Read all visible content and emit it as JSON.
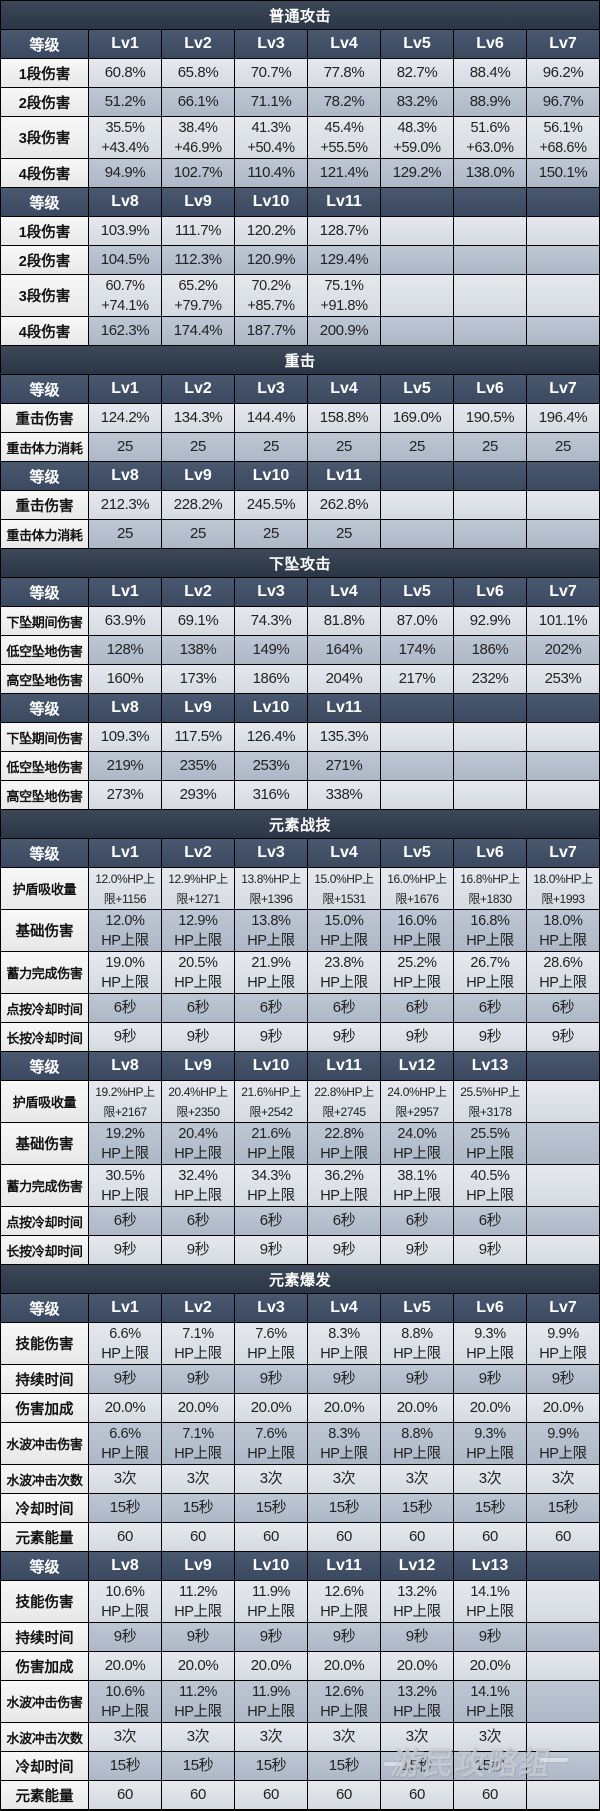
{
  "theme": {
    "title_bg": "#2e3a4b",
    "header_bg": "#3e4e66",
    "header_text": "#ffffff",
    "label_bg": "#efefef",
    "row_light": "#dce1e8",
    "row_dark": "#b4bfce",
    "cell_text": "#222222",
    "border": "#000000"
  },
  "watermark": "游民攻略组",
  "sections": [
    {
      "title": "普通攻击",
      "blocks": [
        {
          "header": [
            "等级",
            "Lv1",
            "Lv2",
            "Lv3",
            "Lv4",
            "Lv5",
            "Lv6",
            "Lv7"
          ],
          "rows": [
            {
              "label": "1段伤害",
              "values": [
                "60.8%",
                "65.8%",
                "70.7%",
                "77.8%",
                "82.7%",
                "88.4%",
                "96.2%"
              ]
            },
            {
              "label": "2段伤害",
              "values": [
                "51.2%",
                "66.1%",
                "71.1%",
                "78.2%",
                "83.2%",
                "88.9%",
                "96.7%"
              ]
            },
            {
              "label": "3段伤害",
              "values": [
                "35.5%\n+43.4%",
                "38.4%\n+46.9%",
                "41.3%\n+50.4%",
                "45.4%\n+55.5%",
                "48.3%\n+59.0%",
                "51.6%\n+63.0%",
                "56.1%\n+68.6%"
              ]
            },
            {
              "label": "4段伤害",
              "values": [
                "94.9%",
                "102.7%",
                "110.4%",
                "121.4%",
                "129.2%",
                "138.0%",
                "150.1%"
              ]
            }
          ]
        },
        {
          "header": [
            "等级",
            "Lv8",
            "Lv9",
            "Lv10",
            "Lv11"
          ],
          "rows": [
            {
              "label": "1段伤害",
              "values": [
                "103.9%",
                "111.7%",
                "120.2%",
                "128.7%"
              ]
            },
            {
              "label": "2段伤害",
              "values": [
                "104.5%",
                "112.3%",
                "120.9%",
                "129.4%"
              ]
            },
            {
              "label": "3段伤害",
              "values": [
                "60.7%\n+74.1%",
                "65.2%\n+79.7%",
                "70.2%\n+85.7%",
                "75.1%\n+91.8%"
              ]
            },
            {
              "label": "4段伤害",
              "values": [
                "162.3%",
                "174.4%",
                "187.7%",
                "200.9%"
              ]
            }
          ]
        }
      ]
    },
    {
      "title": "重击",
      "blocks": [
        {
          "header": [
            "等级",
            "Lv1",
            "Lv2",
            "Lv3",
            "Lv4",
            "Lv5",
            "Lv6",
            "Lv7"
          ],
          "rows": [
            {
              "label": "重击伤害",
              "values": [
                "124.2%",
                "134.3%",
                "144.4%",
                "158.8%",
                "169.0%",
                "190.5%",
                "196.4%"
              ]
            },
            {
              "label": "重击体力消耗",
              "values": [
                "25",
                "25",
                "25",
                "25",
                "25",
                "25",
                "25"
              ]
            }
          ]
        },
        {
          "header": [
            "等级",
            "Lv8",
            "Lv9",
            "Lv10",
            "Lv11"
          ],
          "rows": [
            {
              "label": "重击伤害",
              "values": [
                "212.3%",
                "228.2%",
                "245.5%",
                "262.8%"
              ]
            },
            {
              "label": "重击体力消耗",
              "values": [
                "25",
                "25",
                "25",
                "25"
              ]
            }
          ]
        }
      ]
    },
    {
      "title": "下坠攻击",
      "blocks": [
        {
          "header": [
            "等级",
            "Lv1",
            "Lv2",
            "Lv3",
            "Lv4",
            "Lv5",
            "Lv6",
            "Lv7"
          ],
          "rows": [
            {
              "label": "下坠期间伤害",
              "values": [
                "63.9%",
                "69.1%",
                "74.3%",
                "81.8%",
                "87.0%",
                "92.9%",
                "101.1%"
              ]
            },
            {
              "label": "低空坠地伤害",
              "values": [
                "128%",
                "138%",
                "149%",
                "164%",
                "174%",
                "186%",
                "202%"
              ]
            },
            {
              "label": "高空坠地伤害",
              "values": [
                "160%",
                "173%",
                "186%",
                "204%",
                "217%",
                "232%",
                "253%"
              ]
            }
          ]
        },
        {
          "header": [
            "等级",
            "Lv8",
            "Lv9",
            "Lv10",
            "Lv11"
          ],
          "rows": [
            {
              "label": "下坠期间伤害",
              "values": [
                "109.3%",
                "117.5%",
                "126.4%",
                "135.3%"
              ]
            },
            {
              "label": "低空坠地伤害",
              "values": [
                "219%",
                "235%",
                "253%",
                "271%"
              ]
            },
            {
              "label": "高空坠地伤害",
              "values": [
                "273%",
                "293%",
                "316%",
                "338%"
              ]
            }
          ]
        }
      ]
    },
    {
      "title": "元素战技",
      "blocks": [
        {
          "header": [
            "等级",
            "Lv1",
            "Lv2",
            "Lv3",
            "Lv4",
            "Lv5",
            "Lv6",
            "Lv7"
          ],
          "rows": [
            {
              "label": "护盾吸收量",
              "values": [
                "12.0%HP上\n限+1156",
                "12.9%HP上\n限+1271",
                "13.8%HP上\n限+1396",
                "15.0%HP上\n限+1531",
                "16.0%HP上\n限+1676",
                "16.8%HP上\n限+1830",
                "18.0%HP上\n限+1993"
              ]
            },
            {
              "label": "基础伤害",
              "values": [
                "12.0%\nHP上限",
                "12.9%\nHP上限",
                "13.8%\nHP上限",
                "15.0%\nHP上限",
                "16.0%\nHP上限",
                "16.8%\nHP上限",
                "18.0%\nHP上限"
              ]
            },
            {
              "label": "蓄力完成伤害",
              "values": [
                "19.0%\nHP上限",
                "20.5%\nHP上限",
                "21.9%\nHP上限",
                "23.8%\nHP上限",
                "25.2%\nHP上限",
                "26.7%\nHP上限",
                "28.6%\nHP上限"
              ]
            },
            {
              "label": "点按冷却时间",
              "values": [
                "6秒",
                "6秒",
                "6秒",
                "6秒",
                "6秒",
                "6秒",
                "6秒"
              ]
            },
            {
              "label": "长按冷却时间",
              "values": [
                "9秒",
                "9秒",
                "9秒",
                "9秒",
                "9秒",
                "9秒",
                "9秒"
              ]
            }
          ]
        },
        {
          "header": [
            "等级",
            "Lv8",
            "Lv9",
            "Lv10",
            "Lv11",
            "Lv12",
            "Lv13"
          ],
          "rows": [
            {
              "label": "护盾吸收量",
              "values": [
                "19.2%HP上\n限+2167",
                "20.4%HP上\n限+2350",
                "21.6%HP上\n限+2542",
                "22.8%HP上\n限+2745",
                "24.0%HP上\n限+2957",
                "25.5%HP上\n限+3178"
              ]
            },
            {
              "label": "基础伤害",
              "values": [
                "19.2%\nHP上限",
                "20.4%\nHP上限",
                "21.6%\nHP上限",
                "22.8%\nHP上限",
                "24.0%\nHP上限",
                "25.5%\nHP上限"
              ]
            },
            {
              "label": "蓄力完成伤害",
              "values": [
                "30.5%\nHP上限",
                "32.4%\nHP上限",
                "34.3%\nHP上限",
                "36.2%\nHP上限",
                "38.1%\nHP上限",
                "40.5%\nHP上限"
              ]
            },
            {
              "label": "点按冷却时间",
              "values": [
                "6秒",
                "6秒",
                "6秒",
                "6秒",
                "6秒",
                "6秒"
              ]
            },
            {
              "label": "长按冷却时间",
              "values": [
                "9秒",
                "9秒",
                "9秒",
                "9秒",
                "9秒",
                "9秒"
              ]
            }
          ]
        }
      ]
    },
    {
      "title": "元素爆发",
      "blocks": [
        {
          "header": [
            "等级",
            "Lv1",
            "Lv2",
            "Lv3",
            "Lv4",
            "Lv5",
            "Lv6",
            "Lv7"
          ],
          "rows": [
            {
              "label": "技能伤害",
              "values": [
                "6.6%\nHP上限",
                "7.1%\nHP上限",
                "7.6%\nHP上限",
                "8.3%\nHP上限",
                "8.8%\nHP上限",
                "9.3%\nHP上限",
                "9.9%\nHP上限"
              ]
            },
            {
              "label": "持续时间",
              "values": [
                "9秒",
                "9秒",
                "9秒",
                "9秒",
                "9秒",
                "9秒",
                "9秒"
              ]
            },
            {
              "label": "伤害加成",
              "values": [
                "20.0%",
                "20.0%",
                "20.0%",
                "20.0%",
                "20.0%",
                "20.0%",
                "20.0%"
              ]
            },
            {
              "label": "水波冲击伤害",
              "values": [
                "6.6%\nHP上限",
                "7.1%\nHP上限",
                "7.6%\nHP上限",
                "8.3%\nHP上限",
                "8.8%\nHP上限",
                "9.3%\nHP上限",
                "9.9%\nHP上限"
              ]
            },
            {
              "label": "水波冲击次数",
              "values": [
                "3次",
                "3次",
                "3次",
                "3次",
                "3次",
                "3次",
                "3次"
              ]
            },
            {
              "label": "冷却时间",
              "values": [
                "15秒",
                "15秒",
                "15秒",
                "15秒",
                "15秒",
                "15秒",
                "15秒"
              ]
            },
            {
              "label": "元素能量",
              "values": [
                "60",
                "60",
                "60",
                "60",
                "60",
                "60",
                "60"
              ]
            }
          ]
        },
        {
          "header": [
            "等级",
            "Lv8",
            "Lv9",
            "Lv10",
            "Lv11",
            "Lv12",
            "Lv13"
          ],
          "rows": [
            {
              "label": "技能伤害",
              "values": [
                "10.6%\nHP上限",
                "11.2%\nHP上限",
                "11.9%\nHP上限",
                "12.6%\nHP上限",
                "13.2%\nHP上限",
                "14.1%\nHP上限"
              ]
            },
            {
              "label": "持续时间",
              "values": [
                "9秒",
                "9秒",
                "9秒",
                "9秒",
                "9秒",
                "9秒"
              ]
            },
            {
              "label": "伤害加成",
              "values": [
                "20.0%",
                "20.0%",
                "20.0%",
                "20.0%",
                "20.0%",
                "20.0%"
              ]
            },
            {
              "label": "水波冲击伤害",
              "values": [
                "10.6%\nHP上限",
                "11.2%\nHP上限",
                "11.9%\nHP上限",
                "12.6%\nHP上限",
                "13.2%\nHP上限",
                "14.1%\nHP上限"
              ]
            },
            {
              "label": "水波冲击次数",
              "values": [
                "3次",
                "3次",
                "3次",
                "3次",
                "3次",
                "3次"
              ]
            },
            {
              "label": "冷却时间",
              "values": [
                "15秒",
                "15秒",
                "15秒",
                "15秒",
                "15秒",
                "15秒"
              ]
            },
            {
              "label": "元素能量",
              "values": [
                "60",
                "60",
                "60",
                "60",
                "60",
                "60"
              ]
            }
          ]
        }
      ]
    }
  ]
}
